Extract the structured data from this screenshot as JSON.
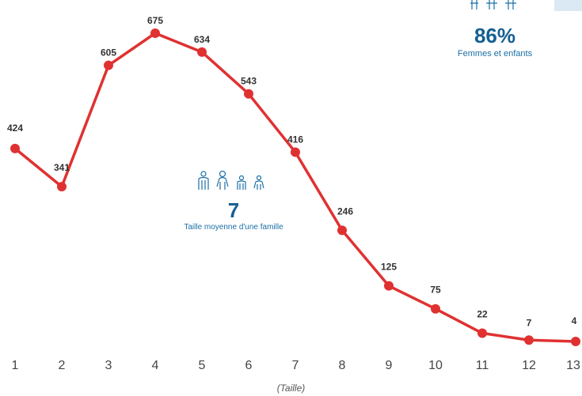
{
  "chart_data": {
    "type": "line",
    "categories": [
      "1",
      "2",
      "3",
      "4",
      "5",
      "6",
      "7",
      "8",
      "9",
      "10",
      "11",
      "12",
      "13"
    ],
    "values": [
      424,
      341,
      605,
      675,
      634,
      543,
      416,
      246,
      125,
      75,
      22,
      7,
      4
    ],
    "xlabel": "(Taille)",
    "ylabel": "",
    "ylim": [
      0,
      700
    ],
    "grid": false,
    "line_color": "#e03131"
  },
  "stats": {
    "women_children": {
      "value": "86%",
      "caption": "Femmes et enfants"
    },
    "avg_family": {
      "value": "7",
      "caption": "Taille moyenne d'une famille"
    }
  },
  "colors": {
    "accent": "#1b6fa6",
    "line": "#e03131",
    "highlight_box": "#dbe9f4"
  },
  "icons": [
    "family-icon"
  ]
}
